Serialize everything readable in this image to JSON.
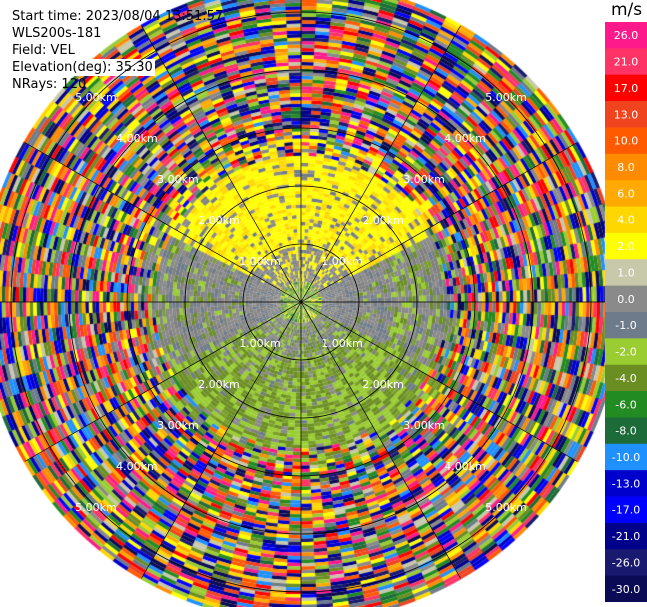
{
  "info": {
    "start_time": "Start time: 2023/08/04 13:51:57",
    "instrument": "WLS200s-181",
    "field": "Field: VEL",
    "elevation": "Elevation(deg): 35.30",
    "nrays": "NRays: 120"
  },
  "chart_data": {
    "type": "heatmap",
    "projection": "polar PPI (plan position indicator)",
    "field": "VEL",
    "nrays": 120,
    "max_range_km": 5.5,
    "range_rings_km": [
      1,
      2,
      3,
      4,
      5
    ],
    "ring_labels": [
      "1.00km",
      "2.00km",
      "3.00km",
      "4.00km",
      "5.00km"
    ],
    "spokes_deg_step": 30,
    "crosshair": true,
    "description_of_field": {
      "inner_0_to_0.3km": "mixed green/yellow/gray",
      "north_half_1_to_2.5km": "yellow (approx 2 to 6 m/s)",
      "middle_band_0.5_to_1.5km_east_west": "gray (approx -1 to 1 m/s)",
      "south_half_0.5_to_2.5km": "green (approx -2 to -6 m/s)",
      "beyond_2.7km": "noise, all colors"
    },
    "colorbar": {
      "unit": "m/s",
      "tick_labels": [
        "26.0",
        "21.0",
        "17.0",
        "13.0",
        "10.0",
        "8.0",
        "6.0",
        "4.0",
        "2.0",
        "1.0",
        "0.0",
        "-1.0",
        "-2.0",
        "-4.0",
        "-6.0",
        "-8.0",
        "-10.0",
        "-13.0",
        "-17.0",
        "-21.0",
        "-26.0",
        "-30.0"
      ],
      "colors": [
        "#ff1a8c",
        "#ff3366",
        "#ff0000",
        "#f0441e",
        "#ff5a00",
        "#ff8c00",
        "#ffaa00",
        "#ffd700",
        "#ffff00",
        "#c8c8aa",
        "#8a8a8a",
        "#6e7b8b",
        "#9acd32",
        "#6b8e23",
        "#228b22",
        "#1e6b3a",
        "#1e90ff",
        "#0000cd",
        "#0000ff",
        "#00008b",
        "#191970",
        "#0b0b55"
      ]
    }
  }
}
